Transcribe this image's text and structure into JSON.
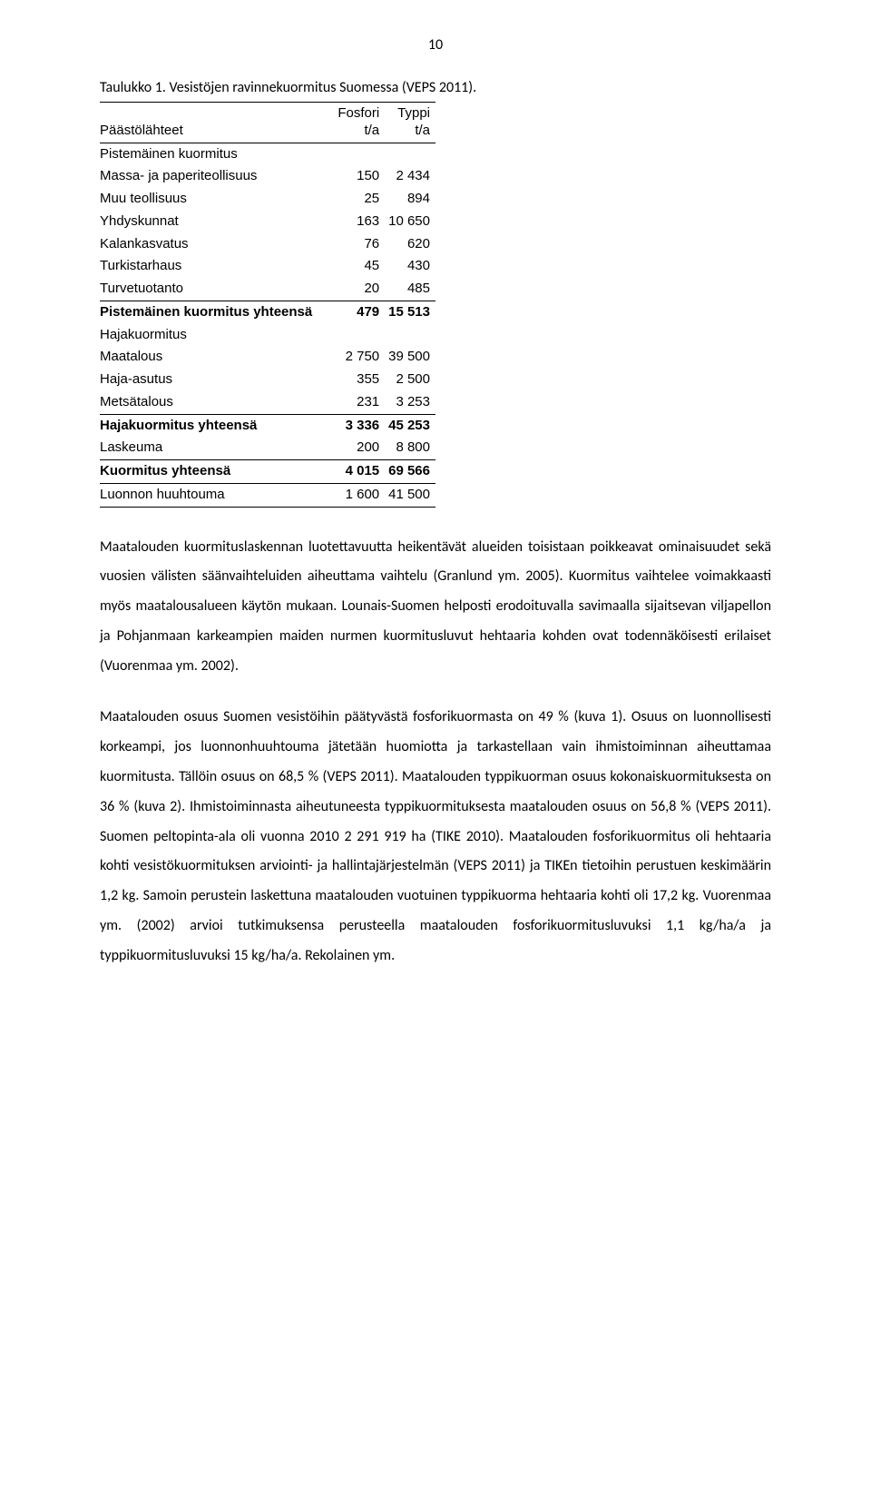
{
  "pageNumber": "10",
  "caption": "Taulukko 1. Vesistöjen ravinnekuormitus Suomessa (VEPS 2011).",
  "table": {
    "head": {
      "col0": "Päästölähteet",
      "col1a": "Fosfori",
      "col1b": "t/a",
      "col2a": "Typpi",
      "col2b": "t/a"
    },
    "rows": {
      "r0": {
        "label": "Pistemäinen kuormitus",
        "c1": "",
        "c2": ""
      },
      "r1": {
        "label": "Massa- ja paperiteollisuus",
        "c1": "150",
        "c2": "2 434"
      },
      "r2": {
        "label": "Muu teollisuus",
        "c1": "25",
        "c2": "894"
      },
      "r3": {
        "label": "Yhdyskunnat",
        "c1": "163",
        "c2": "10 650"
      },
      "r4": {
        "label": "Kalankasvatus",
        "c1": "76",
        "c2": "620"
      },
      "r5": {
        "label": "Turkistarhaus",
        "c1": "45",
        "c2": "430"
      },
      "r6": {
        "label": "Turvetuotanto",
        "c1": "20",
        "c2": "485"
      },
      "r7": {
        "label": "Pistemäinen kuormitus yhteensä",
        "c1": "479",
        "c2": "15 513"
      },
      "r8": {
        "label": "Hajakuormitus",
        "c1": "",
        "c2": ""
      },
      "r9": {
        "label": "Maatalous",
        "c1": "2 750",
        "c2": "39 500"
      },
      "r10": {
        "label": "Haja-asutus",
        "c1": "355",
        "c2": "2 500"
      },
      "r11": {
        "label": "Metsätalous",
        "c1": "231",
        "c2": "3 253"
      },
      "r12": {
        "label": "Hajakuormitus yhteensä",
        "c1": "3 336",
        "c2": "45 253"
      },
      "r13": {
        "label": "Laskeuma",
        "c1": "200",
        "c2": "8 800"
      },
      "r14": {
        "label": "Kuormitus yhteensä",
        "c1": "4 015",
        "c2": "69 566"
      },
      "r15": {
        "label": "Luonnon huuhtouma",
        "c1": "1 600",
        "c2": "41 500"
      }
    }
  },
  "para1": "Maatalouden kuormituslaskennan luotettavuutta heikentävät alueiden toisistaan poikkeavat ominaisuudet sekä vuosien välisten säänvaihteluiden aiheuttama vaihtelu (Granlund ym. 2005). Kuormitus vaihtelee voimakkaasti myös maatalousalueen käytön mukaan. Lounais-Suomen helposti erodoituvalla savimaalla sijaitsevan viljapellon ja Pohjanmaan karkeampien maiden nurmen kuormitusluvut hehtaaria kohden ovat todennäköisesti erilaiset (Vuorenmaa ym. 2002).",
  "para2": "Maatalouden osuus Suomen vesistöihin päätyvästä fosforikuormasta on 49 % (kuva 1). Osuus on luonnollisesti korkeampi, jos luonnonhuuhtouma jätetään huomiotta ja tarkastellaan vain ihmistoiminnan aiheuttamaa kuormitusta. Tällöin osuus on 68,5 % (VEPS 2011). Maatalouden typpikuorman osuus kokonaiskuormituksesta on 36 % (kuva 2). Ihmistoiminnasta aiheutuneesta typpikuormituksesta maatalouden osuus on 56,8 % (VEPS 2011). Suomen peltopinta-ala oli vuonna 2010 2 291 919 ha (TIKE 2010). Maatalouden fosforikuormitus oli hehtaaria kohti vesistökuormituksen arviointi- ja hallintajärjestelmän (VEPS 2011) ja TIKEn tietoihin perustuen keskimäärin 1,2 kg. Samoin perustein laskettuna maatalouden vuotuinen typpikuorma hehtaaria kohti oli 17,2 kg. Vuorenmaa ym. (2002) arvioi tutkimuksensa perusteella maatalouden fosforikuormitusluvuksi 1,1 kg/ha/a ja typpikuormitusluvuksi 15 kg/ha/a. Rekolainen ym."
}
